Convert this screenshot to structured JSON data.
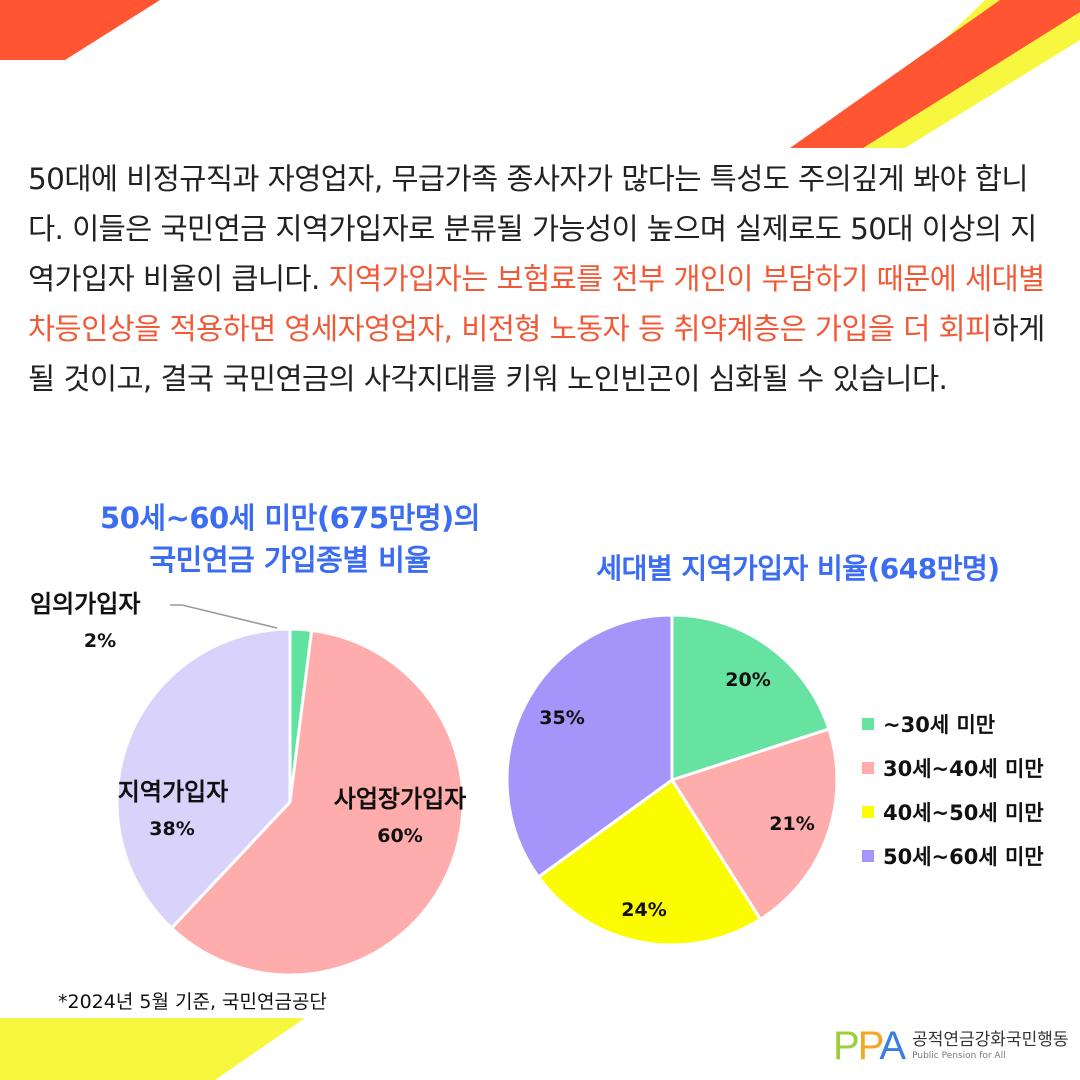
{
  "paragraph": {
    "part1": "50대에 비정규직과 자영업자, 무급가족 종사자가 많다는 특성도 주의깊게 봐야 합니다. 이들은 국민연금 지역가입자로 분류될 가능성이 높으며 실제로도 50대 이상의 지역가입자 비율이 큽니다. ",
    "highlight": "지역가입자는 보험료를 전부 개인이 부담하기 때문에 세대별 차등인상을 적용하면 영세자영업자, 비전형 노동자 등 취약계층은 가입을 더 회피",
    "part2": "하게 될 것이고, 결국 국민연금의 사각지대를 키워 노인빈곤이 심화될 수 있습니다."
  },
  "colors": {
    "accent_orange": "#ff5533",
    "accent_yellow": "#f7f740",
    "title_blue": "#3b6cf2",
    "highlight_text": "#f25a37"
  },
  "chart_data": [
    {
      "type": "pie",
      "title_line1": "50세~60세 미만(675만명)의",
      "title_line2": "국민연금 가입종별 비율",
      "slices": [
        {
          "label": "임의가입자",
          "pct_label": "2%",
          "value": 2,
          "color": "#5fe39e"
        },
        {
          "label": "사업장가입자",
          "pct_label": "60%",
          "value": 60,
          "color": "#ffacac"
        },
        {
          "label": "지역가입자",
          "pct_label": "38%",
          "value": 38,
          "color": "#d9d2fb"
        }
      ]
    },
    {
      "type": "pie",
      "title": "세대별 지역가입자 비율(648만명)",
      "legend_position": "right",
      "slices": [
        {
          "label": "~30세 미만",
          "pct_label": "20%",
          "value": 20,
          "color": "#66e3a0"
        },
        {
          "label": "30세~40세 미만",
          "pct_label": "21%",
          "value": 21,
          "color": "#ffacac"
        },
        {
          "label": "40세~50세 미만",
          "pct_label": "24%",
          "value": 24,
          "color": "#fcfc00"
        },
        {
          "label": "50세~60세 미만",
          "pct_label": "35%",
          "value": 35,
          "color": "#a594f9"
        }
      ]
    }
  ],
  "source": "*2024년 5월 기준, 국민연금공단",
  "logo": {
    "mark": "PPA",
    "name": "공적연금강화국민행동",
    "subtitle": "Public Pension for All"
  }
}
